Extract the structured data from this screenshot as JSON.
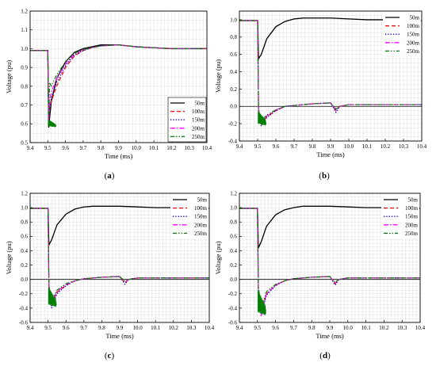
{
  "colors": {
    "series_50m": "#000000",
    "series_100m": "#ff0000",
    "series_150m": "#0000cc",
    "series_200m": "#ff00ff",
    "series_250m": "#008000",
    "grid": "#d3d3d3"
  },
  "chart_data": [
    {
      "type": "line",
      "panel_label": "(a)",
      "panel_letter": "a",
      "xlabel": "Time (ms)",
      "ylabel": "Voltage (pu)",
      "xlim": [
        9.4,
        10.4
      ],
      "ylim": [
        0.5,
        1.2
      ],
      "xticks": [
        "9.4",
        "9.5",
        "9.6",
        "9.7",
        "9.8",
        "9.9",
        "10.0",
        "10.1",
        "10.2",
        "10.3",
        "10.4"
      ],
      "yticks": [
        "0.5",
        "0.6",
        "0.7",
        "0.8",
        "0.9",
        "1.0",
        "1.1",
        "1.2"
      ],
      "grid": true,
      "legend_position": "bottom-right",
      "series": [
        {
          "name": "50m",
          "dash": "solid",
          "x": [
            9.4,
            9.5,
            9.505,
            9.51,
            9.52,
            9.55,
            9.6,
            9.65,
            9.7,
            9.75,
            9.8,
            9.9,
            10.0,
            10.1,
            10.2,
            10.3,
            10.4
          ],
          "y": [
            0.99,
            0.99,
            0.58,
            0.63,
            0.72,
            0.84,
            0.93,
            0.98,
            1.0,
            1.01,
            1.02,
            1.02,
            1.01,
            1.005,
            1.0,
            1.0,
            1.0
          ]
        },
        {
          "name": "100m",
          "dash": "dash",
          "x": [
            9.4,
            9.5,
            9.505,
            9.51,
            9.52,
            9.55,
            9.6,
            9.65,
            9.7,
            9.75,
            9.8,
            9.9,
            10.0,
            10.1,
            10.2,
            10.3,
            10.4
          ],
          "y": [
            0.99,
            0.99,
            0.59,
            0.69,
            0.72,
            0.8,
            0.9,
            0.96,
            0.99,
            1.005,
            1.015,
            1.02,
            1.01,
            1.005,
            1.0,
            1.0,
            1.0
          ]
        },
        {
          "name": "150m",
          "dash": "dot",
          "x": [
            9.4,
            9.5,
            9.505,
            9.51,
            9.52,
            9.55,
            9.6,
            9.65,
            9.7,
            9.75,
            9.8,
            9.9,
            10.0,
            10.1,
            10.2,
            10.3,
            10.4
          ],
          "y": [
            0.99,
            0.99,
            0.6,
            0.68,
            0.74,
            0.82,
            0.91,
            0.965,
            0.99,
            1.005,
            1.015,
            1.02,
            1.01,
            1.005,
            1.0,
            1.0,
            1.0
          ]
        },
        {
          "name": "200m",
          "dash": "dashdot",
          "x": [
            9.4,
            9.5,
            9.505,
            9.51,
            9.52,
            9.55,
            9.6,
            9.65,
            9.7,
            9.75,
            9.8,
            9.9,
            10.0,
            10.1,
            10.2,
            10.3,
            10.4
          ],
          "y": [
            0.99,
            0.99,
            0.62,
            0.72,
            0.77,
            0.84,
            0.92,
            0.97,
            0.995,
            1.005,
            1.015,
            1.02,
            1.01,
            1.005,
            1.0,
            1.0,
            1.0
          ]
        },
        {
          "name": "250m",
          "dash": "dashdotdot",
          "x": [
            9.4,
            9.5,
            9.505,
            9.51,
            9.52,
            9.55,
            9.6,
            9.65,
            9.7,
            9.75,
            9.8,
            9.9,
            10.0,
            10.1,
            10.2,
            10.3,
            10.4
          ],
          "y": [
            0.99,
            0.99,
            0.63,
            0.82,
            0.8,
            0.86,
            0.93,
            0.975,
            0.995,
            1.005,
            1.015,
            1.02,
            1.01,
            1.005,
            1.0,
            1.0,
            1.0
          ]
        }
      ]
    },
    {
      "type": "line",
      "panel_label": "(b)",
      "panel_letter": "b",
      "xlabel": "Time (ms)",
      "ylabel": "Voltage (pu)",
      "xlim": [
        9.4,
        10.4
      ],
      "ylim": [
        -0.4,
        1.1
      ],
      "xticks": [
        "9.4",
        "9.5",
        "9.6",
        "9.7",
        "9.8",
        "9.9",
        "10.0",
        "10.1",
        "10.2",
        "10.3",
        "10.4"
      ],
      "yticks": [
        "-0.4",
        "-0.2",
        "0.0",
        "0.2",
        "0.4",
        "0.6",
        "0.8",
        "1.0"
      ],
      "grid": true,
      "legend_position": "top-right",
      "series": [
        {
          "name": "50m",
          "dash": "solid",
          "x": [
            9.4,
            9.5,
            9.505,
            9.52,
            9.55,
            9.6,
            9.65,
            9.7,
            9.75,
            9.8,
            9.9,
            10.0,
            10.1,
            10.2,
            10.3,
            10.4
          ],
          "y": [
            0.99,
            0.99,
            0.55,
            0.6,
            0.78,
            0.92,
            0.98,
            1.01,
            1.02,
            1.02,
            1.02,
            1.01,
            1.0,
            1.0,
            0.99,
            0.99
          ]
        },
        {
          "name": "100m",
          "dash": "dash",
          "x": [
            9.4,
            9.5,
            9.505,
            9.52,
            9.55,
            9.6,
            9.65,
            9.7,
            9.8,
            9.9,
            9.93,
            9.95,
            10.0,
            10.1,
            10.2,
            10.3,
            10.4
          ],
          "y": [
            0.99,
            0.99,
            -0.05,
            -0.2,
            -0.12,
            -0.05,
            0.0,
            0.01,
            0.03,
            0.04,
            -0.05,
            0.0,
            0.02,
            0.02,
            0.02,
            0.02,
            0.02
          ]
        },
        {
          "name": "150m",
          "dash": "dot",
          "x": [
            9.4,
            9.5,
            9.505,
            9.52,
            9.55,
            9.6,
            9.65,
            9.7,
            9.8,
            9.9,
            9.93,
            9.95,
            10.0,
            10.1,
            10.2,
            10.3,
            10.4
          ],
          "y": [
            0.99,
            0.99,
            -0.05,
            -0.23,
            -0.13,
            -0.05,
            0.0,
            0.01,
            0.03,
            0.04,
            -0.07,
            0.0,
            0.02,
            0.02,
            0.02,
            0.02,
            0.02
          ]
        },
        {
          "name": "200m",
          "dash": "dashdot",
          "x": [
            9.4,
            9.5,
            9.505,
            9.52,
            9.55,
            9.6,
            9.65,
            9.7,
            9.8,
            9.9,
            9.93,
            9.95,
            10.0,
            10.1,
            10.2,
            10.3,
            10.4
          ],
          "y": [
            0.99,
            0.99,
            -0.04,
            -0.19,
            -0.11,
            -0.04,
            0.0,
            0.01,
            0.03,
            0.04,
            -0.04,
            0.0,
            0.02,
            0.02,
            0.02,
            0.02,
            0.02
          ]
        },
        {
          "name": "250m",
          "dash": "dashdotdot",
          "x": [
            9.4,
            9.5,
            9.505,
            9.52,
            9.55,
            9.6,
            9.65,
            9.7,
            9.8,
            9.9,
            9.93,
            9.95,
            10.0,
            10.1,
            10.2,
            10.3,
            10.4
          ],
          "y": [
            0.99,
            0.99,
            -0.03,
            -0.17,
            -0.1,
            -0.04,
            0.0,
            0.01,
            0.03,
            0.04,
            -0.03,
            0.0,
            0.02,
            0.02,
            0.02,
            0.02,
            0.02
          ]
        }
      ]
    },
    {
      "type": "line",
      "panel_label": "(c)",
      "panel_letter": "c",
      "xlabel": "Time (ms)",
      "ylabel": "Voltage (pu)",
      "xlim": [
        9.4,
        10.4
      ],
      "ylim": [
        -0.6,
        1.2
      ],
      "xticks": [
        "9.4",
        "9.5",
        "9.6",
        "9.7",
        "9.8",
        "9.9",
        "10.0",
        "10.1",
        "10.2",
        "10.3",
        "10.4"
      ],
      "yticks": [
        "-0.6",
        "-0.4",
        "-0.2",
        "0.0",
        "0.2",
        "0.4",
        "0.6",
        "0.8",
        "1.0",
        "1.2"
      ],
      "grid": true,
      "legend_position": "top-right",
      "series": [
        {
          "name": "50m",
          "dash": "solid",
          "x": [
            9.4,
            9.5,
            9.505,
            9.52,
            9.55,
            9.6,
            9.65,
            9.7,
            9.75,
            9.8,
            9.9,
            10.0,
            10.1,
            10.2,
            10.3,
            10.4
          ],
          "y": [
            0.99,
            0.99,
            0.48,
            0.55,
            0.76,
            0.91,
            0.98,
            1.01,
            1.02,
            1.02,
            1.02,
            1.01,
            1.0,
            1.0,
            0.99,
            0.99
          ]
        },
        {
          "name": "100m",
          "dash": "dash",
          "x": [
            9.4,
            9.5,
            9.505,
            9.52,
            9.55,
            9.6,
            9.65,
            9.7,
            9.8,
            9.9,
            9.93,
            9.95,
            10.0,
            10.1,
            10.2,
            10.3,
            10.4
          ],
          "y": [
            0.99,
            0.99,
            -0.1,
            -0.35,
            -0.18,
            -0.08,
            -0.02,
            0.01,
            0.03,
            0.04,
            -0.05,
            0.0,
            0.02,
            0.02,
            0.02,
            0.02,
            0.02
          ]
        },
        {
          "name": "150m",
          "dash": "dot",
          "x": [
            9.4,
            9.5,
            9.505,
            9.52,
            9.55,
            9.6,
            9.65,
            9.7,
            9.8,
            9.9,
            9.93,
            9.95,
            10.0,
            10.1,
            10.2,
            10.3,
            10.4
          ],
          "y": [
            0.99,
            0.99,
            -0.1,
            -0.4,
            -0.2,
            -0.09,
            -0.02,
            0.01,
            0.03,
            0.04,
            -0.07,
            0.0,
            0.02,
            0.02,
            0.02,
            0.02,
            0.02
          ]
        },
        {
          "name": "200m",
          "dash": "dashdot",
          "x": [
            9.4,
            9.5,
            9.505,
            9.52,
            9.55,
            9.6,
            9.65,
            9.7,
            9.8,
            9.9,
            9.93,
            9.95,
            10.0,
            10.1,
            10.2,
            10.3,
            10.4
          ],
          "y": [
            0.99,
            0.99,
            -0.08,
            -0.33,
            -0.17,
            -0.07,
            -0.02,
            0.01,
            0.03,
            0.04,
            -0.04,
            0.0,
            0.02,
            0.02,
            0.02,
            0.02,
            0.02
          ]
        },
        {
          "name": "250m",
          "dash": "dashdotdot",
          "x": [
            9.4,
            9.5,
            9.505,
            9.52,
            9.55,
            9.6,
            9.65,
            9.7,
            9.8,
            9.9,
            9.93,
            9.95,
            10.0,
            10.1,
            10.2,
            10.3,
            10.4
          ],
          "y": [
            0.99,
            0.99,
            -0.07,
            -0.3,
            -0.15,
            -0.06,
            -0.02,
            0.01,
            0.03,
            0.04,
            -0.03,
            0.0,
            0.02,
            0.02,
            0.02,
            0.02,
            0.02
          ]
        }
      ]
    },
    {
      "type": "line",
      "panel_label": "(d)",
      "panel_letter": "d",
      "xlabel": "Time (ms)",
      "ylabel": "Voltage (pu)",
      "xlim": [
        9.4,
        10.4
      ],
      "ylim": [
        -0.6,
        1.2
      ],
      "xticks": [
        "9.4",
        "9.5",
        "9.6",
        "9.7",
        "9.8",
        "9.9",
        "10.0",
        "10.1",
        "10.2",
        "10.3",
        "10.4"
      ],
      "yticks": [
        "-0.6",
        "-0.4",
        "-0.2",
        "0.0",
        "0.2",
        "0.4",
        "0.6",
        "0.8",
        "1.0",
        "1.2"
      ],
      "grid": true,
      "legend_position": "top-right",
      "series": [
        {
          "name": "50m",
          "dash": "solid",
          "x": [
            9.4,
            9.5,
            9.505,
            9.52,
            9.55,
            9.6,
            9.65,
            9.7,
            9.75,
            9.8,
            9.9,
            10.0,
            10.1,
            10.2,
            10.3,
            10.4
          ],
          "y": [
            0.99,
            0.99,
            0.44,
            0.52,
            0.74,
            0.9,
            0.97,
            1.0,
            1.02,
            1.02,
            1.02,
            1.01,
            1.0,
            1.0,
            0.99,
            0.99
          ]
        },
        {
          "name": "100m",
          "dash": "dash",
          "x": [
            9.4,
            9.5,
            9.505,
            9.52,
            9.55,
            9.6,
            9.65,
            9.7,
            9.8,
            9.9,
            9.93,
            9.95,
            10.0,
            10.1,
            10.2,
            10.3,
            10.4
          ],
          "y": [
            0.99,
            0.99,
            -0.15,
            -0.45,
            -0.2,
            -0.08,
            -0.02,
            0.01,
            0.03,
            0.04,
            -0.06,
            0.0,
            0.02,
            0.02,
            0.02,
            0.02,
            0.02
          ]
        },
        {
          "name": "150m",
          "dash": "dot",
          "x": [
            9.4,
            9.5,
            9.505,
            9.52,
            9.55,
            9.6,
            9.65,
            9.7,
            9.8,
            9.9,
            9.93,
            9.95,
            10.0,
            10.1,
            10.2,
            10.3,
            10.4
          ],
          "y": [
            0.99,
            0.99,
            -0.15,
            -0.48,
            -0.22,
            -0.09,
            -0.02,
            0.01,
            0.03,
            0.04,
            -0.08,
            0.0,
            0.02,
            0.02,
            0.02,
            0.02,
            0.02
          ]
        },
        {
          "name": "200m",
          "dash": "dashdot",
          "x": [
            9.4,
            9.5,
            9.505,
            9.52,
            9.55,
            9.6,
            9.65,
            9.7,
            9.8,
            9.9,
            9.93,
            9.95,
            10.0,
            10.1,
            10.2,
            10.3,
            10.4
          ],
          "y": [
            0.99,
            0.99,
            -0.13,
            -0.52,
            -0.2,
            -0.08,
            -0.02,
            0.01,
            0.03,
            0.04,
            -0.05,
            0.0,
            0.02,
            0.02,
            0.02,
            0.02,
            0.02
          ]
        },
        {
          "name": "250m",
          "dash": "dashdotdot",
          "x": [
            9.4,
            9.5,
            9.505,
            9.52,
            9.55,
            9.6,
            9.65,
            9.7,
            9.8,
            9.9,
            9.93,
            9.95,
            10.0,
            10.1,
            10.2,
            10.3,
            10.4
          ],
          "y": [
            0.99,
            0.99,
            -0.1,
            -0.4,
            -0.17,
            -0.07,
            -0.02,
            0.01,
            0.03,
            0.04,
            -0.04,
            0.0,
            0.02,
            0.02,
            0.02,
            0.02,
            0.02
          ]
        }
      ]
    }
  ]
}
